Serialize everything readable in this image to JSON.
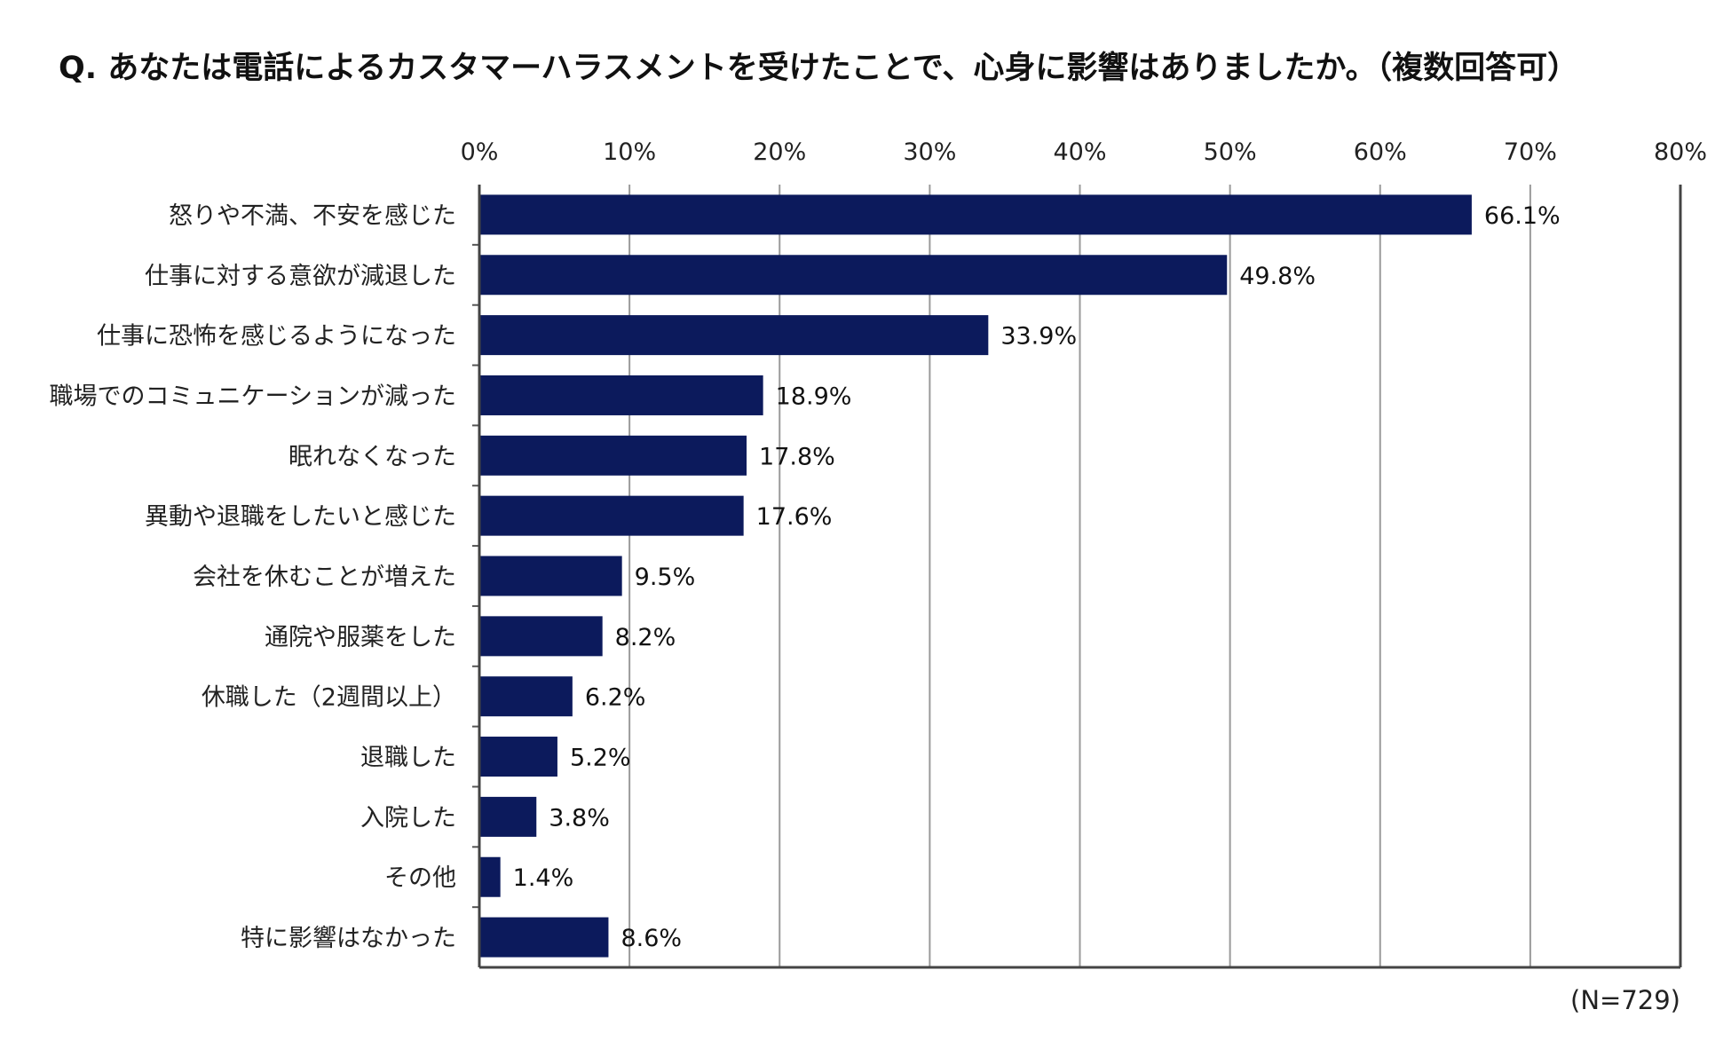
{
  "title": "Q. あなたは電話によるカスタマーハラスメントを受けたことで、心身に影響はありましたか。（複数回答可）",
  "note": "(N=729)",
  "chart_data": {
    "type": "bar",
    "orientation": "horizontal",
    "title": "Q. あなたは電話によるカスタマーハラスメントを受けたことで、心身に影響はありましたか。（複数回答可）",
    "xlabel": "",
    "ylabel": "",
    "xlim": [
      0,
      80
    ],
    "x_tick_labels": [
      "0%",
      "10%",
      "20%",
      "30%",
      "40%",
      "50%",
      "60%",
      "70%",
      "80%"
    ],
    "grid": true,
    "bar_color": "#0c1a5c",
    "categories": [
      "怒りや不満、不安を感じた",
      "仕事に対する意欲が減退した",
      "仕事に恐怖を感じるようになった",
      "職場でのコミュニケーションが減った",
      "眠れなくなった",
      "異動や退職をしたいと感じた",
      "会社を休むことが増えた",
      "通院や服薬をした",
      "休職した（2週間以上）",
      "退職した",
      "入院した",
      "その他",
      "特に影響はなかった"
    ],
    "values": [
      66.1,
      49.8,
      33.9,
      18.9,
      17.8,
      17.6,
      9.5,
      8.2,
      6.2,
      5.2,
      3.8,
      1.4,
      8.6
    ],
    "value_labels": [
      "66.1%",
      "49.8%",
      "33.9%",
      "18.9%",
      "17.8%",
      "17.6%",
      "9.5%",
      "8.2%",
      "6.2%",
      "5.2%",
      "3.8%",
      "1.4%",
      "8.6%"
    ]
  }
}
